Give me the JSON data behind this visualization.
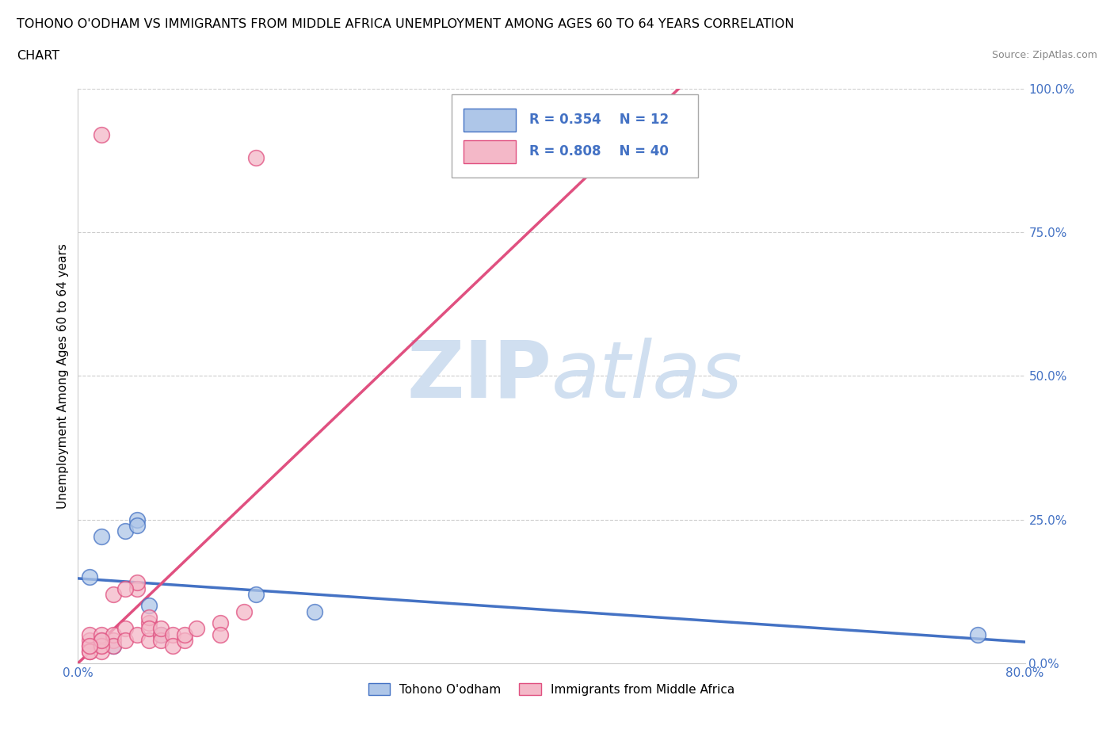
{
  "title_line1": "TOHONO O'ODHAM VS IMMIGRANTS FROM MIDDLE AFRICA UNEMPLOYMENT AMONG AGES 60 TO 64 YEARS CORRELATION",
  "title_line2": "CHART",
  "source_text": "Source: ZipAtlas.com",
  "ylabel": "Unemployment Among Ages 60 to 64 years",
  "xlim": [
    0.0,
    0.8
  ],
  "ylim": [
    0.0,
    1.0
  ],
  "xticks": [
    0.0,
    0.1,
    0.2,
    0.3,
    0.4,
    0.5,
    0.6,
    0.7,
    0.8
  ],
  "yticks": [
    0.0,
    0.25,
    0.5,
    0.75,
    1.0
  ],
  "xtick_labels": [
    "0.0%",
    "",
    "",
    "",
    "",
    "",
    "",
    "",
    "80.0%"
  ],
  "ytick_labels": [
    "0.0%",
    "25.0%",
    "50.0%",
    "75.0%",
    "100.0%"
  ],
  "blue_scatter_x": [
    0.02,
    0.04,
    0.05,
    0.05,
    0.06,
    0.07,
    0.15,
    0.02,
    0.03,
    0.2,
    0.76,
    0.01
  ],
  "blue_scatter_y": [
    0.22,
    0.23,
    0.25,
    0.24,
    0.1,
    0.05,
    0.12,
    0.04,
    0.03,
    0.09,
    0.05,
    0.15
  ],
  "pink_scatter_x": [
    0.01,
    0.01,
    0.01,
    0.01,
    0.02,
    0.02,
    0.02,
    0.02,
    0.03,
    0.03,
    0.03,
    0.04,
    0.04,
    0.05,
    0.05,
    0.05,
    0.06,
    0.06,
    0.06,
    0.06,
    0.07,
    0.07,
    0.07,
    0.08,
    0.08,
    0.09,
    0.09,
    0.1,
    0.12,
    0.12,
    0.14,
    0.15,
    0.01,
    0.02,
    0.02,
    0.02,
    0.03,
    0.04,
    0.38,
    0.01
  ],
  "pink_scatter_y": [
    0.03,
    0.04,
    0.02,
    0.05,
    0.03,
    0.04,
    0.02,
    0.05,
    0.04,
    0.05,
    0.03,
    0.06,
    0.04,
    0.13,
    0.14,
    0.05,
    0.07,
    0.08,
    0.04,
    0.06,
    0.05,
    0.04,
    0.06,
    0.05,
    0.03,
    0.04,
    0.05,
    0.06,
    0.07,
    0.05,
    0.09,
    0.88,
    0.02,
    0.03,
    0.92,
    0.04,
    0.12,
    0.13,
    0.88,
    0.03
  ],
  "blue_R": 0.354,
  "blue_N": 12,
  "pink_R": 0.808,
  "pink_N": 40,
  "blue_color": "#aec6e8",
  "blue_line_color": "#4472c4",
  "pink_color": "#f4b8c8",
  "pink_line_color": "#e05080",
  "watermark_color": "#d0dff0",
  "legend_label_blue": "Tohono O'odham",
  "legend_label_pink": "Immigrants from Middle Africa",
  "background_color": "#ffffff",
  "grid_color": "#cccccc",
  "tick_color": "#4472c4",
  "source_color": "#888888"
}
